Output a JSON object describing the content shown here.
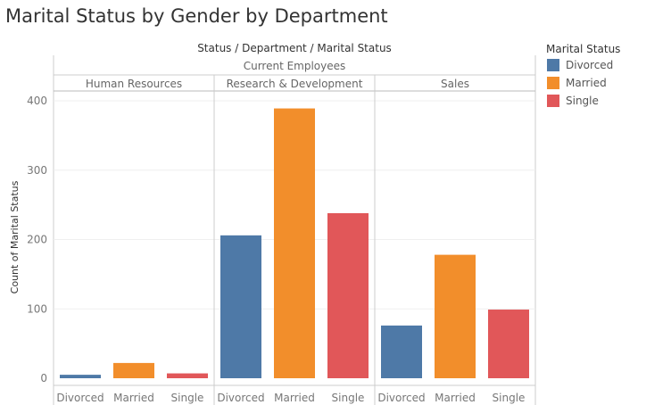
{
  "title": "Marital Status by Gender by Department",
  "chart_data": {
    "type": "bar",
    "column_header": "Status / Department / Marital Status",
    "status_group": "Current Employees",
    "ylabel": "Count of Marital Status",
    "ylim": [
      0,
      420
    ],
    "yticks": [
      0,
      100,
      200,
      300,
      400
    ],
    "grid": true,
    "legend": {
      "title": "Marital Status",
      "placement": "right",
      "items": [
        {
          "label": "Divorced",
          "color": "#4e79a7"
        },
        {
          "label": "Married",
          "color": "#f28e2b"
        },
        {
          "label": "Single",
          "color": "#e15759"
        }
      ]
    },
    "panels": [
      {
        "department": "Human Resources",
        "categories": [
          "Divorced",
          "Married",
          "Single"
        ],
        "values": [
          5,
          22,
          7
        ]
      },
      {
        "department": "Research & Development",
        "categories": [
          "Divorced",
          "Married",
          "Single"
        ],
        "values": [
          206,
          389,
          238
        ]
      },
      {
        "department": "Sales",
        "categories": [
          "Divorced",
          "Married",
          "Single"
        ],
        "values": [
          76,
          178,
          99
        ]
      }
    ]
  }
}
